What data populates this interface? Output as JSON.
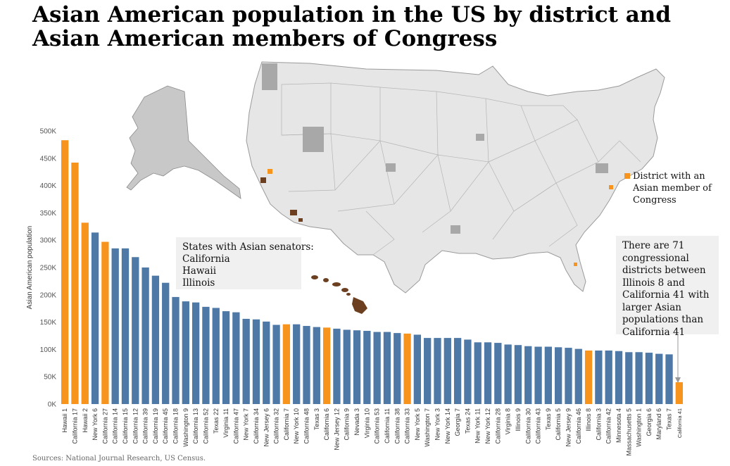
{
  "title": "Asian American population in the US by district and Asian American members of Congress",
  "source": "Sources: National Journal Research,  US Census.",
  "legend": {
    "label": "District with an Asian member of Congress"
  },
  "senators_box": {
    "heading": "States with Asian senators:",
    "states": [
      "California",
      "Hawaii",
      "Illinois"
    ]
  },
  "note_box": {
    "text": "There are 71 congressional districts between Illinois 8 and California 41 with larger Asian populations than California 41"
  },
  "colors": {
    "regular": "#4e79a7",
    "asian_member": "#f7941d",
    "map_land": "#e6e6e6",
    "map_border": "#a0a0a0",
    "map_highlight": "#6b3f1f",
    "axis_text": "#555555"
  },
  "chart_data": {
    "type": "bar",
    "ylabel": "Asian American population",
    "xlabel": "",
    "ylim": [
      0,
      500000
    ],
    "yticks": [
      0,
      50000,
      100000,
      150000,
      200000,
      250000,
      300000,
      350000,
      400000,
      450000,
      500000
    ],
    "ytick_labels": [
      "0K",
      "50K",
      "100K",
      "150K",
      "200K",
      "250K",
      "300K",
      "350K",
      "400K",
      "450K",
      "500K"
    ],
    "categories": [
      "Hawaii 1",
      "California 17",
      "Hawaii 2",
      "New York 6",
      "California 27",
      "California 14",
      "California 15",
      "California 12",
      "California 39",
      "California 19",
      "California 45",
      "California 18",
      "Washington 9",
      "California 13",
      "California 52",
      "Texas 22",
      "Virginia 11",
      "California 47",
      "New York 7",
      "California 34",
      "New Jersey 6",
      "California 32",
      "California 7",
      "New York 10",
      "California 48",
      "Texas 3",
      "California 6",
      "New Jersey 12",
      "California 9",
      "Nevada 3",
      "Virginia 10",
      "California 53",
      "California 11",
      "California 38",
      "California 33",
      "New York 5",
      "Washington 7",
      "New York 3",
      "New York 14",
      "Georgia 7",
      "Texas 24",
      "New York 11",
      "New York 12",
      "California 28",
      "Virginia 8",
      "Illinois 9",
      "California 30",
      "California 43",
      "Texas 9",
      "California 5",
      "New Jersey 9",
      "California 46",
      "Illinois 8",
      "California 3",
      "California 42",
      "Minnesota 4",
      "Massachusetts 5",
      "Washington 1",
      "Georgia 6",
      "Maryland 6",
      "Texas 7",
      "California 41"
    ],
    "values": [
      483000,
      442000,
      332000,
      314000,
      297000,
      285000,
      285000,
      269000,
      250000,
      235000,
      222000,
      196000,
      188000,
      186000,
      178000,
      176000,
      170000,
      168000,
      156000,
      155000,
      151000,
      145000,
      146000,
      146000,
      143000,
      141000,
      140000,
      138000,
      136000,
      135000,
      134000,
      132000,
      132000,
      130000,
      129000,
      127000,
      121000,
      121000,
      121000,
      121000,
      118000,
      113000,
      113000,
      112000,
      109000,
      108000,
      106000,
      105000,
      105000,
      104000,
      103000,
      101000,
      98000,
      98000,
      98000,
      97000,
      95000,
      95000,
      94000,
      92000,
      91000,
      40000
    ],
    "asian_member": [
      true,
      true,
      true,
      false,
      true,
      false,
      false,
      false,
      false,
      false,
      false,
      false,
      false,
      false,
      false,
      false,
      false,
      false,
      false,
      false,
      false,
      false,
      true,
      false,
      false,
      false,
      true,
      false,
      false,
      false,
      false,
      false,
      false,
      false,
      true,
      false,
      false,
      false,
      false,
      false,
      false,
      false,
      false,
      false,
      false,
      false,
      false,
      false,
      false,
      false,
      false,
      false,
      true,
      false,
      false,
      false,
      false,
      false,
      false,
      false,
      false,
      true
    ]
  }
}
